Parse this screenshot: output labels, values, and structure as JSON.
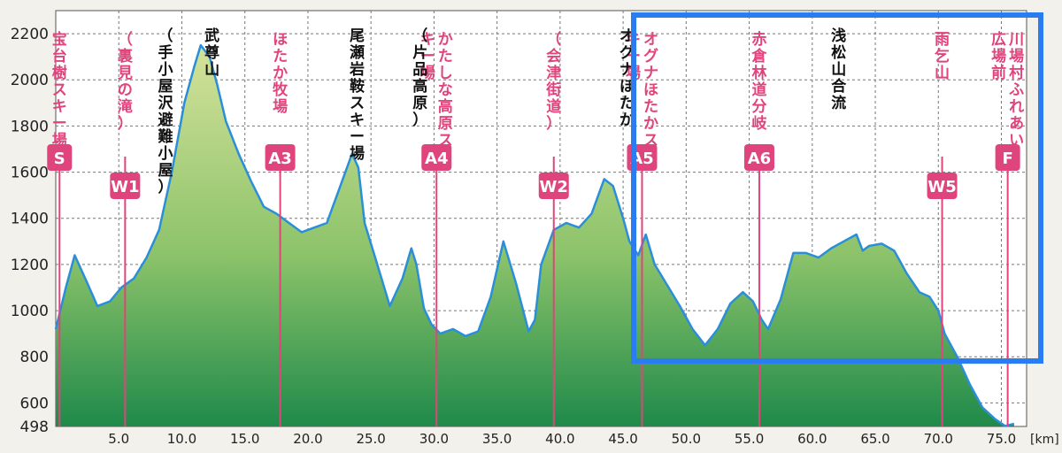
{
  "chart_data": {
    "type": "area",
    "x_unit": "[km]",
    "xlim": [
      0,
      77
    ],
    "ylim": [
      498,
      2300
    ],
    "y_ticks": [
      498,
      600,
      800,
      1000,
      1200,
      1400,
      1600,
      1800,
      2000,
      2200
    ],
    "x_ticks": [
      "5.0",
      "10.0",
      "15.0",
      "20.0",
      "25.0",
      "30.0",
      "35.0",
      "40.0",
      "45.0",
      "50.0",
      "55.0",
      "60.0",
      "65.0",
      "70.0",
      "75.0"
    ],
    "grid": true,
    "colors": {
      "line": "#2a8fd8",
      "fill_top": "#c9dc8e",
      "fill_bottom": "#1f8a4a",
      "marker": "#e0447c",
      "highlight": "#2a7df0"
    },
    "profile": {
      "x": [
        0,
        0.8,
        1.5,
        2.5,
        3.3,
        4.3,
        5.2,
        6.2,
        7.2,
        8.2,
        9.2,
        10.2,
        11,
        11.5,
        12.2,
        12.8,
        13.5,
        14.5,
        15.5,
        16.5,
        17.5,
        18.5,
        19.5,
        20.5,
        21.5,
        22.5,
        23.5,
        24,
        24.5,
        25.5,
        26.5,
        27.5,
        28.2,
        28.6,
        29.2,
        29.8,
        30.5,
        31.5,
        32.5,
        33.5,
        34.5,
        35.5,
        36.5,
        37.5,
        38,
        38.5,
        39.5,
        40.5,
        41.5,
        42.5,
        43.5,
        44.2,
        45,
        45.5,
        46.2,
        46.8,
        47.5,
        48.5,
        49.5,
        50.5,
        51.5,
        52.5,
        53.5,
        54.5,
        55.3,
        56,
        56.5,
        57.5,
        58.5,
        59.5,
        60.5,
        61.5,
        62.5,
        63.5,
        64,
        64.5,
        65.5,
        66.5,
        67.5,
        68.5,
        69.3,
        70,
        70.5,
        71.5,
        72.5,
        73.5,
        74.5,
        75.3,
        76
      ],
      "elevation": [
        920,
        1100,
        1240,
        1120,
        1020,
        1040,
        1100,
        1140,
        1230,
        1350,
        1600,
        1900,
        2060,
        2150,
        2100,
        1980,
        1820,
        1680,
        1560,
        1450,
        1420,
        1380,
        1340,
        1360,
        1380,
        1530,
        1680,
        1620,
        1380,
        1200,
        1020,
        1140,
        1270,
        1200,
        1010,
        940,
        900,
        920,
        890,
        910,
        1060,
        1300,
        1120,
        910,
        960,
        1200,
        1350,
        1380,
        1360,
        1420,
        1570,
        1540,
        1400,
        1300,
        1240,
        1330,
        1200,
        1110,
        1020,
        920,
        850,
        920,
        1030,
        1080,
        1040,
        960,
        920,
        1050,
        1250,
        1250,
        1230,
        1270,
        1300,
        1330,
        1260,
        1280,
        1290,
        1260,
        1160,
        1080,
        1060,
        1000,
        900,
        800,
        680,
        580,
        530,
        500,
        510
      ],
      "x_labels_step": 5
    },
    "markers": [
      {
        "code": "S",
        "x": 0.3,
        "name": "宝台樹スキー場"
      },
      {
        "code": "W1",
        "x": 5.5,
        "name": "（裏見の滝）"
      },
      {
        "code": "A3",
        "x": 17.8,
        "name": "ほたか牧場"
      },
      {
        "code": "A4",
        "x": 30.2,
        "name": "かたしな高原スキー場"
      },
      {
        "code": "W2",
        "x": 39.5,
        "name": "（会津街道）"
      },
      {
        "code": "A5",
        "x": 46.5,
        "name": "オグナほたかスキー場"
      },
      {
        "code": "A6",
        "x": 55.8,
        "name": "赤倉林道分岐"
      },
      {
        "code": "W5",
        "x": 70.3,
        "name": "雨乞山"
      },
      {
        "code": "F",
        "x": 75.5,
        "name": "川場村ふれあい広場前"
      }
    ],
    "annotations": [
      {
        "text": "武尊山",
        "x": 12.4,
        "color": "black"
      },
      {
        "text": "（手小屋沢避難小屋）",
        "x": 8.7,
        "color": "black"
      },
      {
        "text": "尾瀬岩鞍スキー場",
        "x": 23.9,
        "color": "black"
      },
      {
        "text": "（片品高原）",
        "x": 28.9,
        "color": "black"
      },
      {
        "text": "オグナほたか",
        "x": 45.3,
        "color": "black"
      },
      {
        "text": "浅松山合流",
        "x": 62.1,
        "color": "black"
      }
    ]
  }
}
